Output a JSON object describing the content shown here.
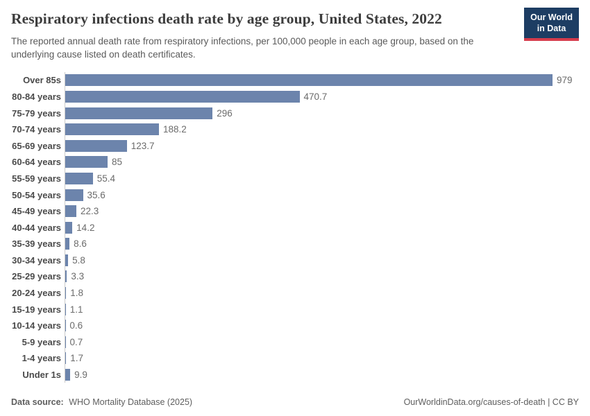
{
  "header": {
    "title": "Respiratory infections death rate by age group, United States, 2022",
    "subtitle": "The reported annual death rate from respiratory infections, per 100,000 people in each age group, based on the underlying cause listed on death certificates.",
    "logo": {
      "line1": "Our World",
      "line2": "in Data",
      "bg_color": "#1d3d63",
      "stripe_color": "#d73c4c"
    }
  },
  "chart_data": {
    "type": "bar",
    "orientation": "horizontal",
    "title": "Respiratory infections death rate by age group, United States, 2022",
    "xlabel": "",
    "ylabel": "",
    "categories": [
      "Over 85s",
      "80-84 years",
      "75-79 years",
      "70-74 years",
      "65-69 years",
      "60-64 years",
      "55-59 years",
      "50-54 years",
      "45-49 years",
      "40-44 years",
      "35-39 years",
      "30-34 years",
      "25-29 years",
      "20-24 years",
      "15-19 years",
      "10-14 years",
      "5-9 years",
      "1-4 years",
      "Under 1s"
    ],
    "values": [
      979,
      470.7,
      296,
      188.2,
      123.7,
      85,
      55.4,
      35.6,
      22.3,
      14.2,
      8.6,
      5.8,
      3.3,
      1.8,
      1.1,
      0.6,
      0.7,
      1.7,
      9.9
    ],
    "value_labels": [
      "979",
      "470.7",
      "296",
      "188.2",
      "123.7",
      "85",
      "55.4",
      "35.6",
      "22.3",
      "14.2",
      "8.6",
      "5.8",
      "3.3",
      "1.8",
      "1.1",
      "0.6",
      "0.7",
      "1.7",
      "9.9"
    ],
    "xlim": [
      0,
      979
    ],
    "xmax": 979,
    "bar_color": "#6c84ac",
    "axis_line_color": "#cccccc",
    "grid": false,
    "legend": "none"
  },
  "footer": {
    "source_label": "Data source:",
    "source_text": "WHO Mortality Database (2025)",
    "attribution": "OurWorldinData.org/causes-of-death | CC BY"
  }
}
